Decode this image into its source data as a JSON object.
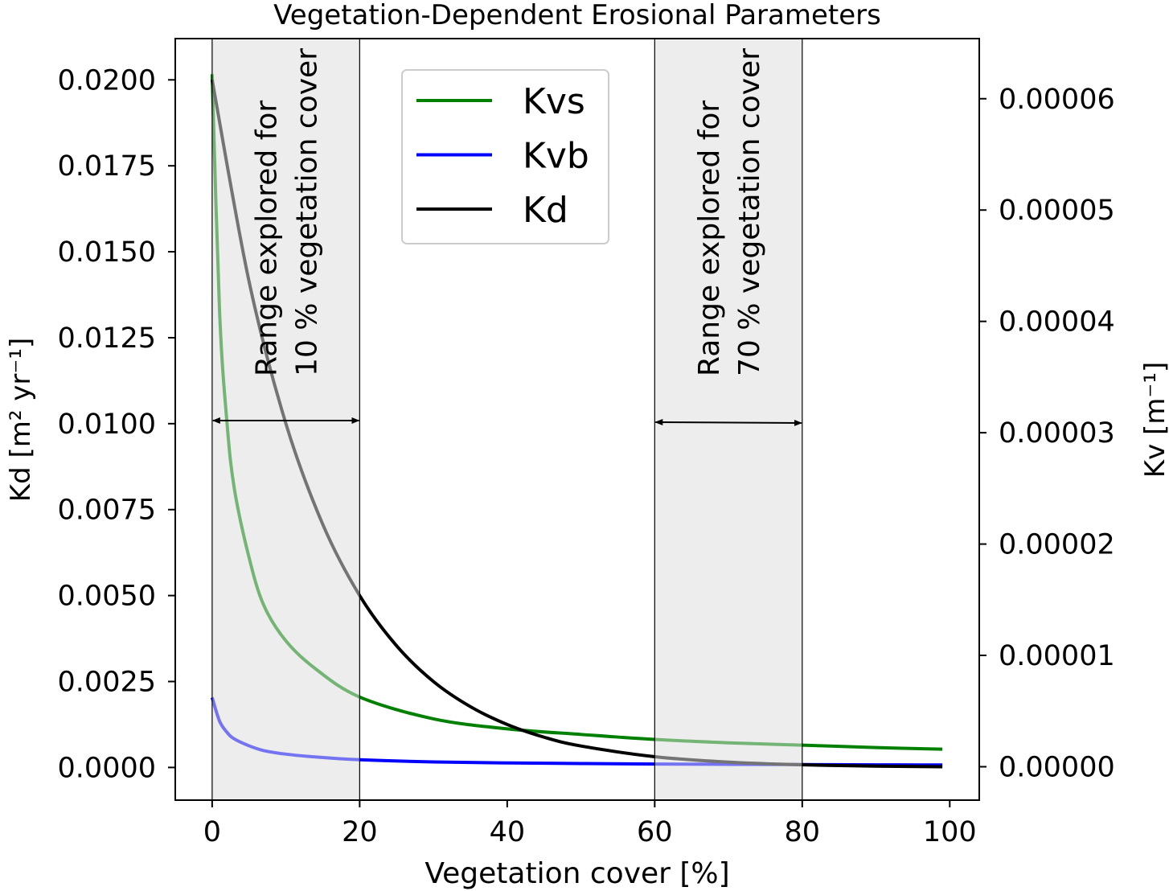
{
  "chart_data": {
    "type": "line",
    "title": "Vegetation-Dependent Erosional Parameters",
    "xlabel": "Vegetation cover [%]",
    "ylabel_left": "Kd [m² yr⁻¹]",
    "ylabel_right": "Kv [m⁻¹]",
    "xlim": [
      -5,
      104
    ],
    "ylim_left": [
      -0.00095,
      0.0212
    ],
    "ylim_right": [
      -3e-06,
      6.54e-05
    ],
    "x_ticks": [
      "0",
      "20",
      "40",
      "60",
      "80",
      "100"
    ],
    "x_tick_values": [
      0,
      20,
      40,
      60,
      80,
      100
    ],
    "y_left_ticks": [
      "0.0000",
      "0.0025",
      "0.0050",
      "0.0075",
      "0.0100",
      "0.0125",
      "0.0150",
      "0.0175",
      "0.0200"
    ],
    "y_left_tick_values": [
      0,
      0.0025,
      0.005,
      0.0075,
      0.01,
      0.0125,
      0.015,
      0.0175,
      0.02
    ],
    "y_right_ticks": [
      "0.00000",
      "0.00001",
      "0.00002",
      "0.00003",
      "0.00004",
      "0.00005",
      "0.00006"
    ],
    "y_right_tick_values": [
      0,
      1e-05,
      2e-05,
      3e-05,
      4e-05,
      5e-05,
      6e-05
    ],
    "grid": false,
    "legend_position": "top-center",
    "series": [
      {
        "name": "Kvs",
        "axis": "right",
        "color": "#008000",
        "x": [
          0,
          1,
          2,
          3,
          5,
          7,
          10,
          14,
          20,
          30,
          40,
          50,
          60,
          70,
          80,
          90,
          99
        ],
        "y": [
          6.22e-05,
          4.1e-05,
          3.1e-05,
          2.5e-05,
          1.88e-05,
          1.45e-05,
          1.13e-05,
          8.8e-06,
          6.26e-06,
          4.3e-06,
          3.4e-06,
          2.9e-06,
          2.45e-06,
          2.15e-06,
          1.94e-06,
          1.72e-06,
          1.58e-06
        ]
      },
      {
        "name": "Kvb",
        "axis": "right",
        "color": "#0000ff",
        "x": [
          0,
          1,
          2,
          3,
          5,
          7,
          10,
          14,
          20,
          30,
          40,
          50,
          60,
          70,
          80,
          90,
          99
        ],
        "y": [
          6.22e-06,
          4.1e-06,
          3.1e-06,
          2.5e-06,
          1.88e-06,
          1.45e-06,
          1.13e-06,
          8.8e-07,
          6.26e-07,
          4.3e-07,
          3.4e-07,
          2.9e-07,
          2.45e-07,
          2.15e-07,
          1.94e-07,
          1.72e-07,
          1.58e-07
        ]
      },
      {
        "name": "Kd",
        "axis": "left",
        "color": "#000000",
        "x": [
          0,
          5,
          10,
          15,
          20,
          25,
          30,
          35,
          40,
          45,
          50,
          60,
          70,
          80,
          90,
          99
        ],
        "y": [
          0.02,
          0.01414,
          0.01,
          0.00707,
          0.005,
          0.00354,
          0.0025,
          0.00177,
          0.00125,
          0.00088,
          0.000625,
          0.000313,
          0.000156,
          7.8e-05,
          3.9e-05,
          2.1e-05
        ]
      }
    ],
    "shaded_ranges": [
      {
        "x": [
          0,
          20
        ],
        "label_line1": "Range explored for",
        "label_line2": "10 % vegetation cover"
      },
      {
        "x": [
          60,
          80
        ],
        "label_line1": "Range explored for",
        "label_line2": "70 % vegetation cover"
      }
    ],
    "shade_color": "#f2f2f2"
  }
}
